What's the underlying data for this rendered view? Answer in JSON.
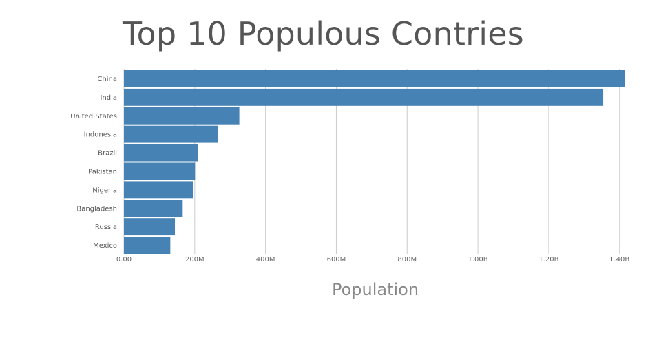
{
  "chart_data": {
    "type": "bar",
    "orientation": "horizontal",
    "title": "Top 10 Populous Contries",
    "xlabel": "Population",
    "ylabel": "",
    "xlim": [
      0,
      1420000000
    ],
    "categories": [
      "China",
      "India",
      "United States",
      "Indonesia",
      "Brazil",
      "Pakistan",
      "Nigeria",
      "Bangladesh",
      "Russia",
      "Mexico"
    ],
    "values": [
      1415000000,
      1354000000,
      326000000,
      266000000,
      210000000,
      201000000,
      196000000,
      166000000,
      144000000,
      131000000
    ],
    "x_ticks": [
      {
        "value": 0,
        "label": "0.00"
      },
      {
        "value": 200000000,
        "label": "200M"
      },
      {
        "value": 400000000,
        "label": "400M"
      },
      {
        "value": 600000000,
        "label": "600M"
      },
      {
        "value": 800000000,
        "label": "800M"
      },
      {
        "value": 1000000000,
        "label": "1.00B"
      },
      {
        "value": 1200000000,
        "label": "1.20B"
      },
      {
        "value": 1400000000,
        "label": "1.40B"
      }
    ],
    "grid": true,
    "legend": "none",
    "bar_color": "#4682b4",
    "grid_color": "#cccccc"
  }
}
